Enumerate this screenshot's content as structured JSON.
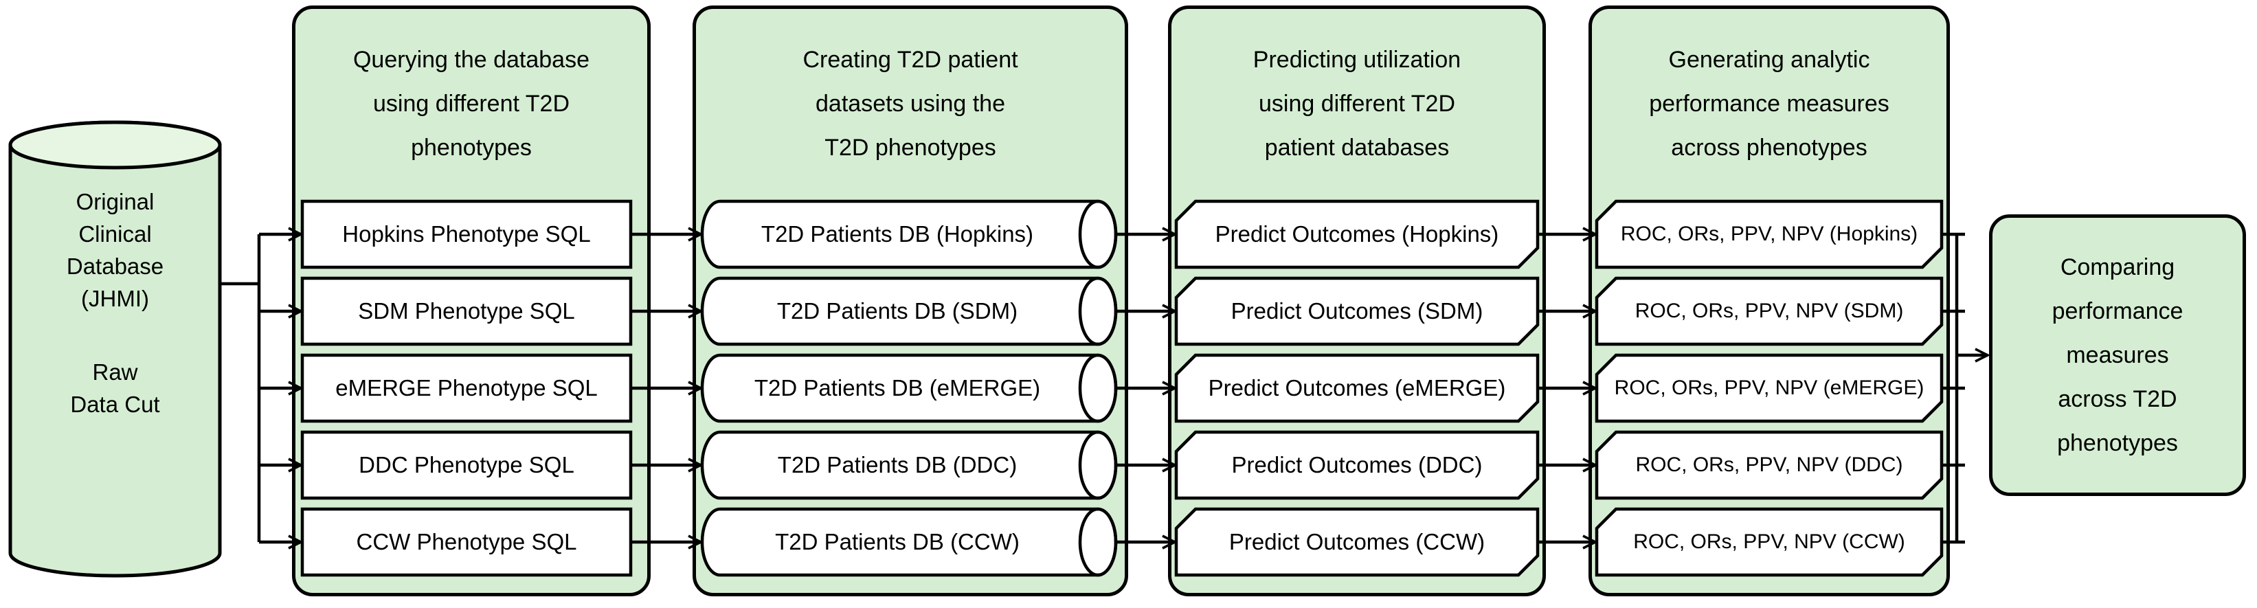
{
  "diagram": {
    "source": {
      "title": "Original\nClinical\nDatabase\n(JHMI)",
      "subtitle": "Raw\nData Cut"
    },
    "columns": [
      {
        "header": "Querying the database\nusing different T2D\nphenotypes",
        "items": [
          "Hopkins Phenotype SQL",
          "SDM Phenotype SQL",
          "eMERGE Phenotype SQL",
          "DDC Phenotype SQL",
          "CCW Phenotype SQL"
        ]
      },
      {
        "header": "Creating T2D patient\ndatasets using the\nT2D phenotypes",
        "items": [
          "T2D Patients DB (Hopkins)",
          "T2D Patients DB (SDM)",
          "T2D Patients DB (eMERGE)",
          "T2D Patients DB (DDC)",
          "T2D Patients DB (CCW)"
        ]
      },
      {
        "header": "Predicting utilization\nusing different T2D\npatient databases",
        "items": [
          "Predict Outcomes (Hopkins)",
          "Predict Outcomes (SDM)",
          "Predict Outcomes (eMERGE)",
          "Predict Outcomes (DDC)",
          "Predict Outcomes (CCW)"
        ]
      },
      {
        "header": "Generating analytic\nperformance measures\nacross phenotypes",
        "items": [
          "ROC, ORs, PPV, NPV (Hopkins)",
          "ROC, ORs, PPV, NPV (SDM)",
          "ROC, ORs, PPV, NPV (eMERGE)",
          "ROC, ORs, PPV, NPV (DDC)",
          "ROC, ORs, PPV, NPV (CCW)"
        ]
      }
    ],
    "result": {
      "label": "Comparing\nperformance\nmeasures\nacross T2D\nphenotypes"
    },
    "colors": {
      "panel_fill": "#d5eed3",
      "cylinder_top_fill": "#e6f6e3",
      "box_fill": "#ffffff",
      "line": "#000000"
    }
  }
}
